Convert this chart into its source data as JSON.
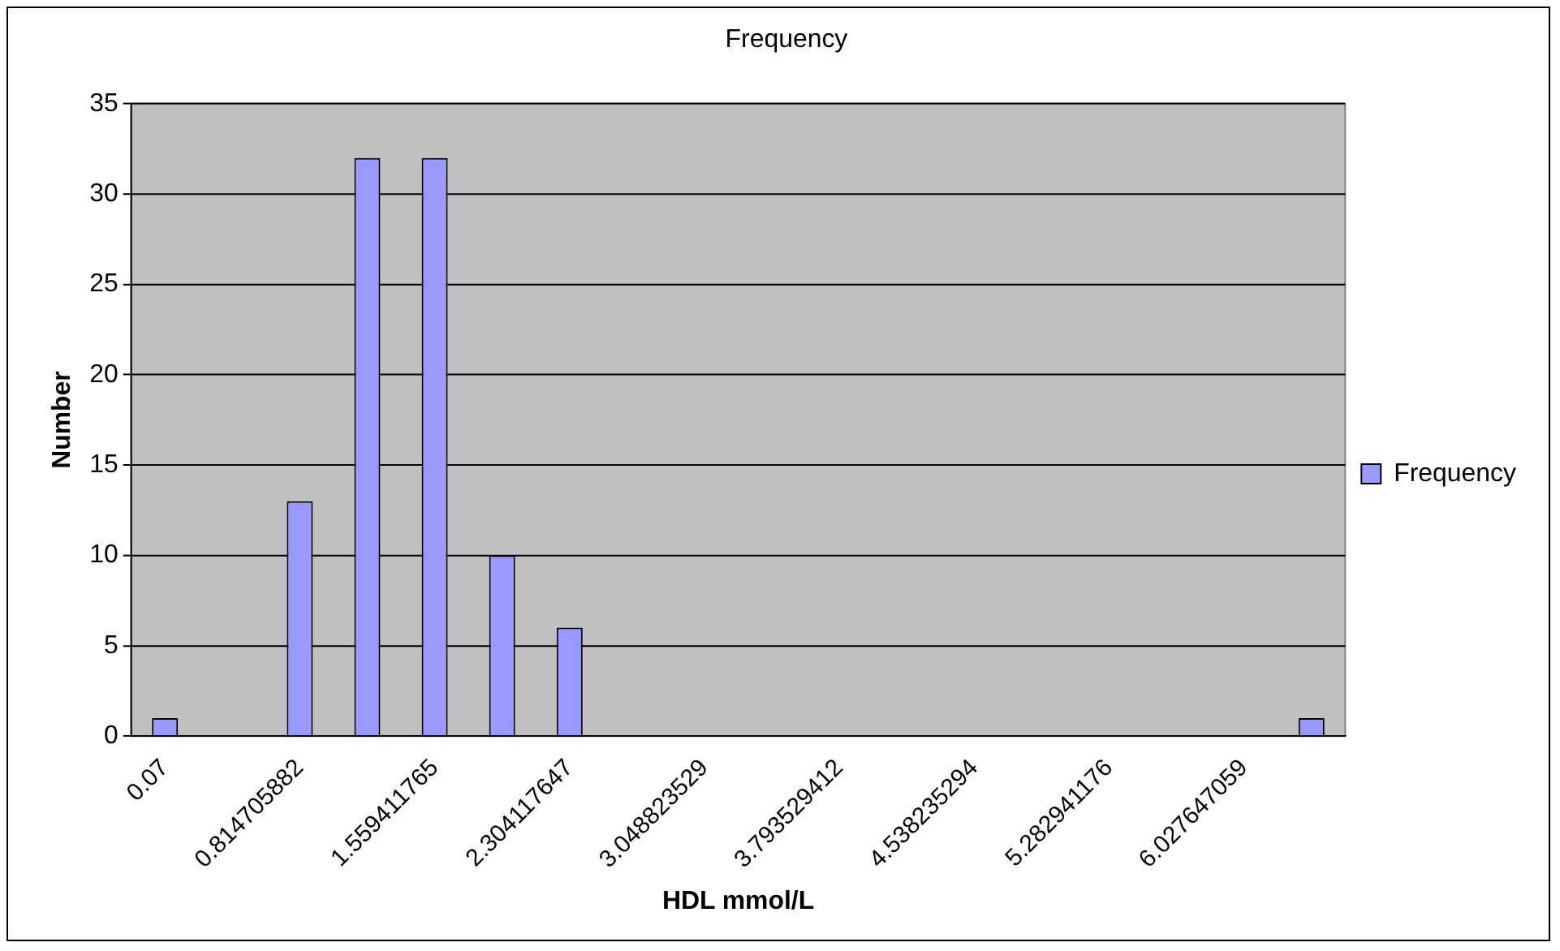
{
  "chart_data": {
    "type": "bar",
    "title": "Frequency",
    "xlabel": "HDL mmol/L",
    "ylabel": "Number",
    "categories": [
      "0.07",
      null,
      "0.814705882",
      null,
      "1.559411765",
      null,
      "2.304117647",
      null,
      "3.048823529",
      null,
      "3.793529412",
      null,
      "4.538235294",
      null,
      "5.282941176",
      null,
      "6.027647059",
      null
    ],
    "series": [
      {
        "name": "Frequency",
        "color": "#9999ff",
        "values": [
          1,
          0,
          13,
          32,
          32,
          10,
          6,
          0,
          0,
          0,
          0,
          0,
          0,
          0,
          0,
          0,
          0,
          1
        ]
      }
    ],
    "ylim": [
      0,
      35
    ],
    "yticks": [
      0,
      5,
      10,
      15,
      20,
      25,
      30,
      35
    ],
    "grid": "y",
    "legend": "right"
  }
}
